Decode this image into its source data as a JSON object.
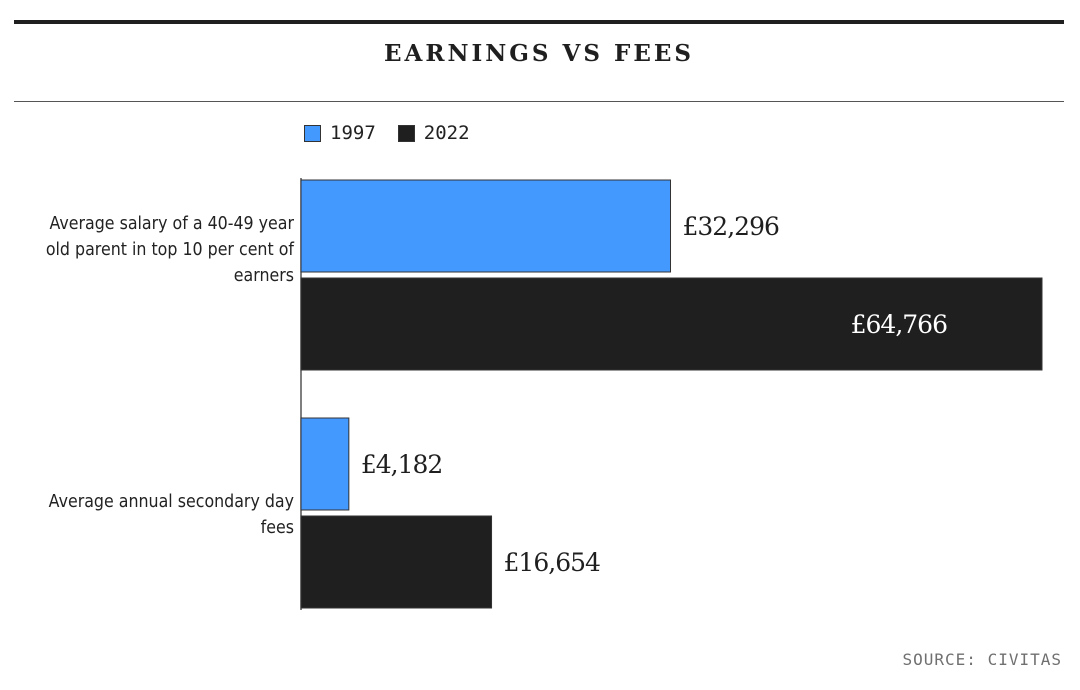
{
  "chart_data": {
    "type": "bar",
    "orientation": "horizontal",
    "title": "EARNINGS VS FEES",
    "categories": [
      "Average salary of a 40-49 year old parent in top 10 per cent of earners",
      "Average annual secondary day fees"
    ],
    "series": [
      {
        "name": "1997",
        "values": [
          32296,
          4182
        ],
        "labels": [
          "£32,296",
          "£4,182"
        ],
        "color": "#4499ff"
      },
      {
        "name": "2022",
        "values": [
          64766,
          16654
        ],
        "labels": [
          "£64,766",
          "£16,654"
        ],
        "color": "#1f1f1f"
      }
    ],
    "xlim": [
      0,
      65000
    ],
    "grid": false,
    "legend_position": "top-left",
    "source": "SOURCE: CIVITAS"
  }
}
